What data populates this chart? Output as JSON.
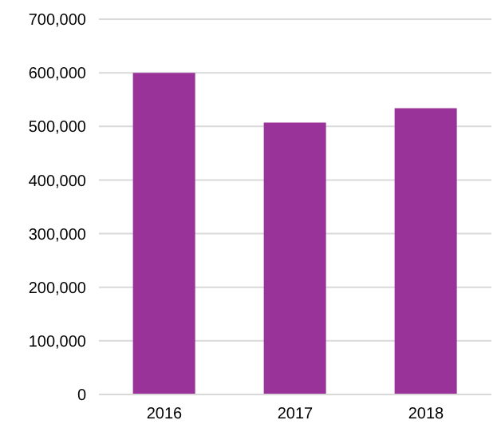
{
  "chart_data": {
    "type": "bar",
    "categories": [
      "2016",
      "2017",
      "2018"
    ],
    "values": [
      600000,
      507000,
      534000
    ],
    "color": "#993399",
    "ylim": [
      0,
      700000
    ],
    "yticks": [
      0,
      {
        "value": 100000,
        "label": "100,000"
      },
      {
        "value": 200000,
        "label": "200,000"
      },
      {
        "value": 300000,
        "label": "300,000"
      },
      {
        "value": 400000,
        "label": "400,000"
      },
      {
        "value": 500000,
        "label": "500,000"
      },
      {
        "value": 600000,
        "label": "600,000"
      },
      {
        "value": 700000,
        "label": "700,000"
      }
    ],
    "grid": "y"
  }
}
